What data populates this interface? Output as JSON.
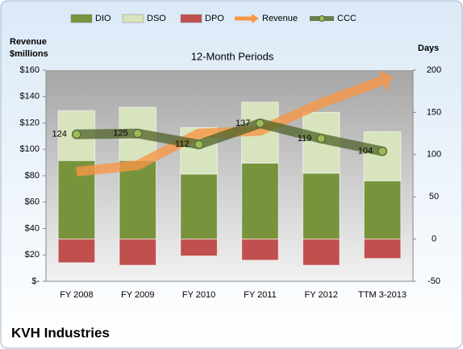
{
  "chart_data": {
    "type": "bar",
    "title": "KVH Industries",
    "subtitle": "12-Month Periods",
    "y_label": [
      "Revenue",
      "$millions"
    ],
    "y2_label": "Days",
    "categories": [
      "FY 2008",
      "FY 2009",
      "FY 2010",
      "FY 2011",
      "FY 2012",
      "TTM 3-2013"
    ],
    "series": [
      {
        "name": "DIO",
        "kind": "bar",
        "axis": "y2",
        "color": "#77933c",
        "values": [
          93,
          93,
          77,
          90,
          78,
          69
        ]
      },
      {
        "name": "DSO",
        "kind": "bar",
        "axis": "y2",
        "color": "#d7e4bd",
        "values": [
          59,
          63,
          55,
          72,
          72,
          58
        ]
      },
      {
        "name": "DPO",
        "kind": "bar",
        "axis": "y2",
        "color": "#c0504d",
        "values": [
          -28,
          -31,
          -20,
          -25,
          -31,
          -23
        ]
      },
      {
        "name": "Revenue",
        "kind": "arrow",
        "axis": "y",
        "color": "#f79646",
        "values": [
          83,
          88,
          112,
          114,
          135,
          152
        ]
      },
      {
        "name": "CCC",
        "kind": "line",
        "axis": "y2",
        "color": "#4f6228",
        "values": [
          124,
          125,
          112,
          137,
          119,
          104
        ]
      }
    ],
    "ylim": [
      0,
      160
    ],
    "yticks": [
      {
        "value": 0,
        "label": "$-"
      },
      {
        "value": 20,
        "label": "$20"
      },
      {
        "value": 40,
        "label": "$40"
      },
      {
        "value": 60,
        "label": "$60"
      },
      {
        "value": 80,
        "label": "$80"
      },
      {
        "value": 100,
        "label": "$100"
      },
      {
        "value": 120,
        "label": "$120"
      },
      {
        "value": 140,
        "label": "$140"
      },
      {
        "value": 160,
        "label": "$160"
      }
    ],
    "y2lim": [
      -50,
      200
    ],
    "y2ticks": [
      -50,
      0,
      50,
      100,
      150,
      200
    ],
    "grid": false
  }
}
